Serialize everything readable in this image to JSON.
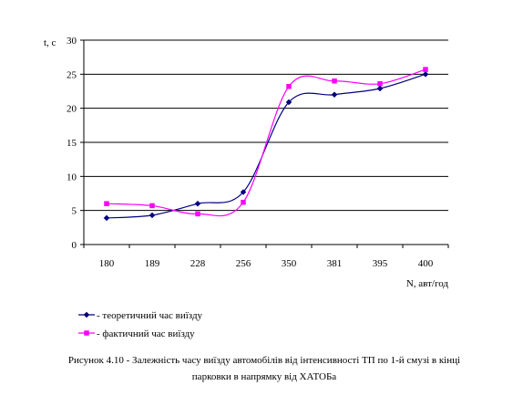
{
  "chart_data": {
    "type": "line",
    "title": "",
    "ylabel": "t, c",
    "xlabel": "N, авт/год",
    "categories": [
      "180",
      "189",
      "228",
      "256",
      "350",
      "381",
      "395",
      "400"
    ],
    "ylim": [
      0,
      30
    ],
    "yticks": [
      "0",
      "5",
      "10",
      "15",
      "20",
      "25",
      "30"
    ],
    "grid": "horizontal",
    "legend_position": "bottom-left",
    "series": [
      {
        "name": "- теоретичний час виїзду",
        "marker": "diamond",
        "color": "#000080",
        "x": [
          180,
          189,
          228,
          256,
          350,
          381,
          395,
          400
        ],
        "values": [
          3.9,
          4.3,
          6.0,
          7.7,
          20.9,
          22.0,
          22.9,
          25.0
        ]
      },
      {
        "name": "- фактичний час виїзду",
        "marker": "square",
        "color": "#ff00ff",
        "x": [
          180,
          189,
          228,
          256,
          350,
          381,
          395,
          400
        ],
        "values": [
          6.0,
          5.7,
          4.5,
          6.2,
          23.2,
          24.0,
          23.6,
          25.7
        ]
      }
    ]
  },
  "caption": {
    "line1": "Рисунок 4.10 - Залежність часу виїзду автомобілів від інтенсивності ТП по 1-й смузі в кінці",
    "line2": "парковки в напрямку від ХАТОБа"
  }
}
